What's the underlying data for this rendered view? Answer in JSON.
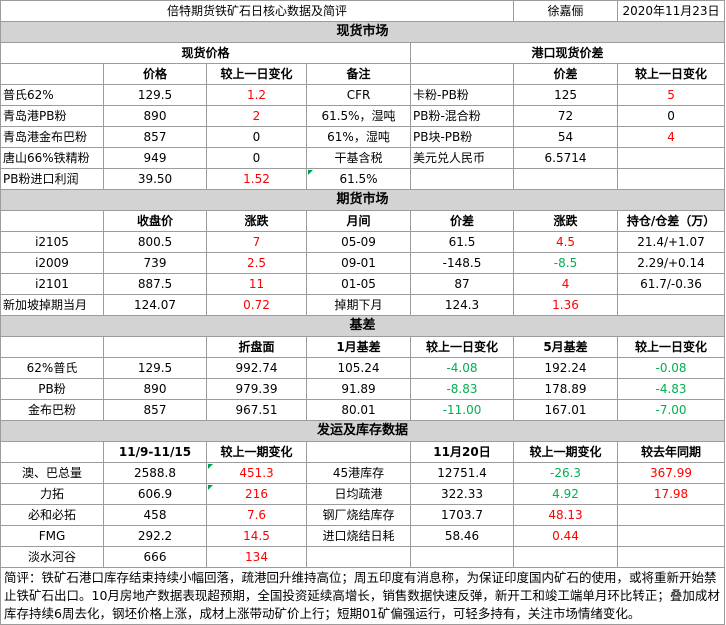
{
  "title": {
    "main": "倍特期货铁矿石日核心数据及简评",
    "author": "徐嘉俪",
    "date": "2020年11月23日"
  },
  "spot": {
    "section": "现货市场",
    "left_title": "现货价格",
    "right_title": "港口现货价差",
    "headers": [
      "价格",
      "较上一日变化",
      "备注",
      "价差",
      "较上一日变化"
    ],
    "rows": [
      {
        "name": "普氏62%",
        "price": "129.5",
        "chg": "1.2",
        "chg_color": "red",
        "note": "CFR",
        "spread_name": "卡粉-PB粉",
        "spread": "125",
        "spread_chg": "5",
        "spread_color": "red"
      },
      {
        "name": "青岛港PB粉",
        "price": "890",
        "chg": "2",
        "chg_color": "red",
        "note": "61.5%，湿吨",
        "spread_name": "PB粉-混合粉",
        "spread": "72",
        "spread_chg": "0",
        "spread_color": "black"
      },
      {
        "name": "青岛港金布巴粉",
        "price": "857",
        "chg": "0",
        "chg_color": "black",
        "note": "61%，湿吨",
        "spread_name": "PB块-PB粉",
        "spread": "54",
        "spread_chg": "4",
        "spread_color": "red"
      },
      {
        "name": "唐山66%铁精粉",
        "price": "949",
        "chg": "0",
        "chg_color": "black",
        "note": "干基含税",
        "spread_name": "美元兑人民币",
        "spread": "6.5714",
        "spread_chg": "",
        "spread_color": "black"
      },
      {
        "name": "PB粉进口利润",
        "price": "39.50",
        "chg": "1.52",
        "chg_color": "red",
        "note": "61.5%",
        "spread_name": "",
        "spread": "",
        "spread_chg": "",
        "spread_color": "black"
      }
    ]
  },
  "futures": {
    "section": "期货市场",
    "headers": [
      "收盘价",
      "涨跌",
      "月间",
      "价差",
      "涨跌",
      "持仓/仓差（万）"
    ],
    "rows": [
      {
        "name": "i2105",
        "close": "800.5",
        "chg": "7",
        "chg_color": "red",
        "spread_name": "05-09",
        "spread": "61.5",
        "spread_chg": "4.5",
        "spread_color": "red",
        "oi": "21.4/+1.07"
      },
      {
        "name": "i2009",
        "close": "739",
        "chg": "2.5",
        "chg_color": "red",
        "spread_name": "09-01",
        "spread": "-148.5",
        "spread_chg": "-8.5",
        "spread_color": "green",
        "oi": "2.29/+0.14"
      },
      {
        "name": "i2101",
        "close": "887.5",
        "chg": "11",
        "chg_color": "red",
        "spread_name": "01-05",
        "spread": "87",
        "spread_chg": "4",
        "spread_color": "red",
        "oi": "61.7/-0.36"
      },
      {
        "name": "新加坡掉期当月",
        "close": "124.07",
        "chg": "0.72",
        "chg_color": "red",
        "spread_name": "掉期下月",
        "spread": "124.3",
        "spread_chg": "1.36",
        "spread_color": "red",
        "oi": ""
      }
    ]
  },
  "basis": {
    "section": "基差",
    "headers": [
      "折盘面",
      "1月基差",
      "较上一日变化",
      "5月基差",
      "较上一日变化"
    ],
    "rows": [
      {
        "name": "62%普氏",
        "price": "129.5",
        "disc": "992.74",
        "b1": "105.24",
        "b1_chg": "-4.08",
        "b5": "192.24",
        "b5_chg": "-0.08"
      },
      {
        "name": "PB粉",
        "price": "890",
        "disc": "979.39",
        "b1": "91.89",
        "b1_chg": "-8.83",
        "b5": "178.89",
        "b5_chg": "-4.83"
      },
      {
        "name": "金布巴粉",
        "price": "857",
        "disc": "967.51",
        "b1": "80.01",
        "b1_chg": "-11.00",
        "b5": "167.01",
        "b5_chg": "-7.00"
      }
    ]
  },
  "shipping": {
    "section": "发运及库存数据",
    "headers": [
      "11/9-11/15",
      "较上一期变化",
      "11月20日",
      "较上一期变化",
      "较去年同期"
    ],
    "rows": [
      {
        "name": "澳、巴总量",
        "val": "2588.8",
        "chg": "451.3",
        "chg_color": "red",
        "item": "45港库存",
        "ival": "12751.4",
        "ichg": "-26.3",
        "ichg_color": "green",
        "yoy": "367.99",
        "yoy_color": "red"
      },
      {
        "name": "力拓",
        "val": "606.9",
        "chg": "216",
        "chg_color": "red",
        "item": "日均疏港",
        "ival": "322.33",
        "ichg": "4.92",
        "ichg_color": "green",
        "yoy": "17.98",
        "yoy_color": "red"
      },
      {
        "name": "必和必拓",
        "val": "458",
        "chg": "7.6",
        "chg_color": "red",
        "item": "钢厂烧结库存",
        "ival": "1703.7",
        "ichg": "48.13",
        "ichg_color": "red",
        "yoy": "",
        "yoy_color": "black"
      },
      {
        "name": "FMG",
        "val": "292.2",
        "chg": "14.5",
        "chg_color": "red",
        "item": "进口烧结日耗",
        "ival": "58.46",
        "ichg": "0.44",
        "ichg_color": "red",
        "yoy": "",
        "yoy_color": "black"
      },
      {
        "name": "淡水河谷",
        "val": "666",
        "chg": "134",
        "chg_color": "red",
        "item": "",
        "ival": "",
        "ichg": "",
        "ichg_color": "black",
        "yoy": "",
        "yoy_color": "black"
      }
    ]
  },
  "summary": "简评：铁矿石港口库存结束持续小幅回落，疏港回升维持高位；周五印度有消息称，为保证印度国内矿石的使用，或将重新开始禁止铁矿石出口。10月房地产数据表现超预期，全国投资延续高增长，销售数据快速反弹，新开工和竣工端单月环比转正；叠加成材库存持续6周去化，钢坯价格上涨，成材上涨带动矿价上行；短期01矿偏强运行，可轻多持有，关注市场情绪变化。"
}
